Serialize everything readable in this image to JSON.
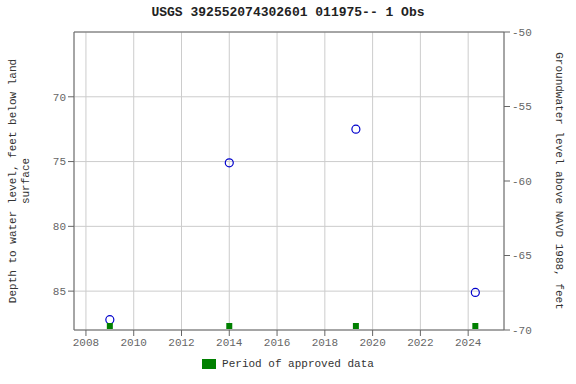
{
  "chart_data": {
    "type": "scatter",
    "title": "USGS 392552074302601 011975-- 1 Obs",
    "x": [
      2009.0,
      2014.0,
      2019.3,
      2024.3
    ],
    "values": [
      87.2,
      75.1,
      72.5,
      85.1
    ],
    "color": "#0000cc",
    "marker": "circle",
    "xlim": [
      2007.5,
      2025.5
    ],
    "xticks": [
      2008,
      2010,
      2012,
      2014,
      2016,
      2018,
      2020,
      2022,
      2024
    ],
    "ylim": [
      88,
      65
    ],
    "yticks": [
      70,
      75,
      80,
      85
    ],
    "y2lim": [
      -70,
      -50
    ],
    "y2ticks": [
      -50,
      -55,
      -60,
      -65,
      -70
    ],
    "y_label": "Depth to water level, feet below land\nsurface",
    "y2_label": "Groundwater level above NAVD 1988, feet",
    "grid": true,
    "legend": "bottom",
    "approved": {
      "name": "Period of approved data",
      "x": [
        2009.0,
        2014.0,
        2019.3,
        2024.3
      ],
      "color": "#008000",
      "marker": "square"
    }
  }
}
